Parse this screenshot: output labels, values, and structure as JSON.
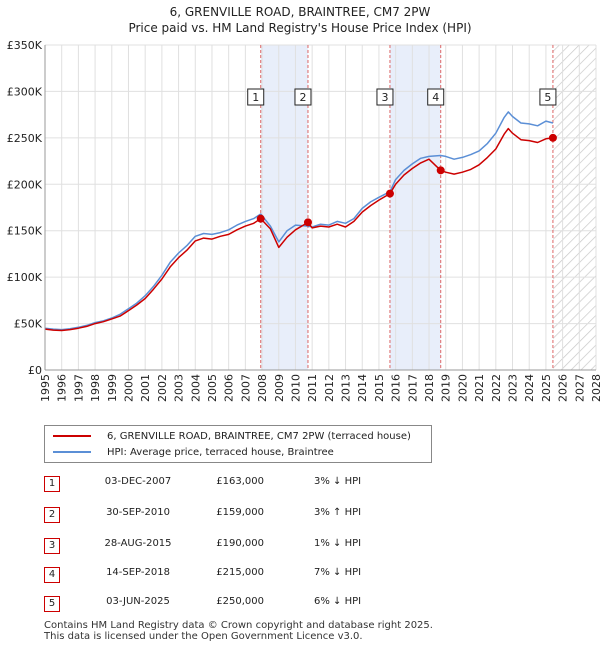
{
  "title_line1": "6, GRENVILLE ROAD, BRAINTREE, CM7 2PW",
  "title_line2": "Price paid vs. HM Land Registry's House Price Index (HPI)",
  "colors": {
    "property": "#cc0000",
    "hpi": "#5b8fd6",
    "band": "#e8eefa",
    "vline": "#dd6666"
  },
  "legend": {
    "property_label": "6, GRENVILLE ROAD, BRAINTREE, CM7 2PW (terraced house)",
    "hpi_label": "HPI: Average price, terraced house, Braintree"
  },
  "sales": [
    {
      "num": "1",
      "date": "03-DEC-2007",
      "price": "£163,000",
      "hpi": "3% ↓ HPI"
    },
    {
      "num": "2",
      "date": "30-SEP-2010",
      "price": "£159,000",
      "hpi": "3% ↑ HPI"
    },
    {
      "num": "3",
      "date": "28-AUG-2015",
      "price": "£190,000",
      "hpi": "1% ↓ HPI"
    },
    {
      "num": "4",
      "date": "14-SEP-2018",
      "price": "£215,000",
      "hpi": "7% ↓ HPI"
    },
    {
      "num": "5",
      "date": "03-JUN-2025",
      "price": "£250,000",
      "hpi": "6% ↓ HPI"
    }
  ],
  "footer_line1": "Contains HM Land Registry data © Crown copyright and database right 2025.",
  "footer_line2": "This data is licensed under the Open Government Licence v3.0.",
  "chart_data": {
    "type": "line",
    "title": "Price paid vs. HM Land Registry's House Price Index (HPI)",
    "xlim": [
      1995,
      2028
    ],
    "ylim": [
      0,
      350000
    ],
    "x_ticks": [
      1995,
      1996,
      1997,
      1998,
      1999,
      2000,
      2001,
      2002,
      2003,
      2004,
      2005,
      2006,
      2007,
      2008,
      2009,
      2010,
      2011,
      2012,
      2013,
      2014,
      2015,
      2016,
      2017,
      2018,
      2019,
      2020,
      2021,
      2022,
      2023,
      2024,
      2025,
      2026,
      2027,
      2028
    ],
    "y_ticks": [
      {
        "value": 0,
        "label": "£0"
      },
      {
        "value": 50000,
        "label": "£50K"
      },
      {
        "value": 100000,
        "label": "£100K"
      },
      {
        "value": 150000,
        "label": "£150K"
      },
      {
        "value": 200000,
        "label": "£200K"
      },
      {
        "value": 250000,
        "label": "£250K"
      },
      {
        "value": 300000,
        "label": "£300K"
      },
      {
        "value": 350000,
        "label": "£350K"
      }
    ],
    "shaded_periods": [
      [
        2007.92,
        2010.75
      ],
      [
        2015.66,
        2018.7
      ]
    ],
    "future_hatch_from": 2025.42,
    "sale_points": [
      {
        "label": "1",
        "x": 2007.92,
        "y": 163000
      },
      {
        "label": "2",
        "x": 2010.75,
        "y": 159000
      },
      {
        "label": "3",
        "x": 2015.66,
        "y": 190000
      },
      {
        "label": "4",
        "x": 2018.7,
        "y": 215000
      },
      {
        "label": "5",
        "x": 2025.42,
        "y": 250000
      }
    ],
    "series": [
      {
        "name": "HPI: Average price, terraced house, Braintree",
        "x": [
          1995,
          1995.5,
          1996,
          1996.5,
          1997,
          1997.5,
          1998,
          1998.5,
          1999,
          1999.5,
          2000,
          2000.5,
          2001,
          2001.5,
          2002,
          2002.5,
          2003,
          2003.5,
          2004,
          2004.5,
          2005,
          2005.5,
          2006,
          2006.5,
          2007,
          2007.5,
          2007.92,
          2008.5,
          2009,
          2009.5,
          2010,
          2010.75,
          2011,
          2011.5,
          2012,
          2012.5,
          2013,
          2013.5,
          2014,
          2014.5,
          2015,
          2015.66,
          2016,
          2016.5,
          2017,
          2017.5,
          2018,
          2018.7,
          2019,
          2019.5,
          2020,
          2020.5,
          2021,
          2021.5,
          2022,
          2022.5,
          2022.75,
          2023,
          2023.5,
          2024,
          2024.5,
          2025,
          2025.42
        ],
        "values": [
          45000,
          44000,
          43500,
          44500,
          46000,
          48000,
          51000,
          53000,
          56000,
          60000,
          66000,
          72000,
          80000,
          90000,
          102000,
          116000,
          126000,
          134000,
          144000,
          147000,
          146000,
          148000,
          151000,
          156000,
          160000,
          163000,
          168000,
          155000,
          138000,
          150000,
          156000,
          155000,
          154000,
          157000,
          156000,
          160000,
          158000,
          163000,
          174000,
          181000,
          186000,
          192000,
          205000,
          215000,
          222000,
          228000,
          230000,
          231000,
          230000,
          227000,
          229000,
          232000,
          236000,
          244000,
          255000,
          272000,
          278000,
          273000,
          266000,
          265000,
          263000,
          268000,
          266000
        ]
      },
      {
        "name": "6, GRENVILLE ROAD, BRAINTREE, CM7 2PW (terraced house)",
        "x": [
          1995,
          1995.5,
          1996,
          1996.5,
          1997,
          1997.5,
          1998,
          1998.5,
          1999,
          1999.5,
          2000,
          2000.5,
          2001,
          2001.5,
          2002,
          2002.5,
          2003,
          2003.5,
          2004,
          2004.5,
          2005,
          2005.5,
          2006,
          2006.5,
          2007,
          2007.5,
          2007.92,
          2008.5,
          2009,
          2009.5,
          2010,
          2010.75,
          2011,
          2011.5,
          2012,
          2012.5,
          2013,
          2013.5,
          2014,
          2014.5,
          2015,
          2015.66,
          2016,
          2016.5,
          2017,
          2017.5,
          2018,
          2018.7,
          2019,
          2019.5,
          2020,
          2020.5,
          2021,
          2021.5,
          2022,
          2022.5,
          2022.75,
          2023,
          2023.5,
          2024,
          2024.5,
          2025,
          2025.42
        ],
        "values": [
          44000,
          43000,
          42500,
          43500,
          45000,
          47000,
          50000,
          52000,
          55000,
          58000,
          64000,
          70000,
          77000,
          87000,
          98000,
          111000,
          121000,
          129000,
          139000,
          142000,
          141000,
          144000,
          146000,
          151000,
          155000,
          158000,
          163000,
          152000,
          132000,
          143000,
          151000,
          159000,
          153000,
          155000,
          154000,
          157000,
          154000,
          160000,
          170000,
          177000,
          183000,
          190000,
          200000,
          210000,
          217000,
          223000,
          227000,
          215000,
          213000,
          211000,
          213000,
          216000,
          221000,
          229000,
          238000,
          254000,
          260000,
          255000,
          248000,
          247000,
          245000,
          249000,
          250000
        ]
      }
    ]
  }
}
